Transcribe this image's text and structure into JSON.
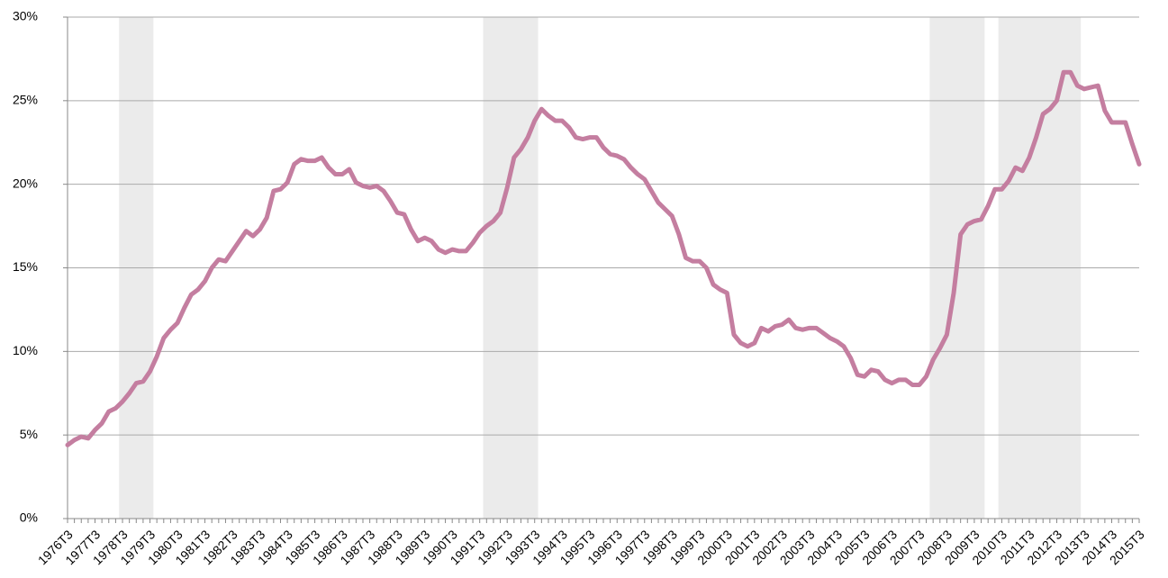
{
  "chart_data": {
    "type": "line",
    "categories": [
      "1976T3",
      null,
      null,
      null,
      "1977T3",
      null,
      null,
      null,
      "1978T3",
      null,
      null,
      null,
      "1979T3",
      null,
      null,
      null,
      "1980T3",
      null,
      null,
      null,
      "1981T3",
      null,
      null,
      null,
      "1982T3",
      null,
      null,
      null,
      "1983T3",
      null,
      null,
      null,
      "1984T3",
      null,
      null,
      null,
      "1985T3",
      null,
      null,
      null,
      "1986T3",
      null,
      null,
      null,
      "1987T3",
      null,
      null,
      null,
      "1988T3",
      null,
      null,
      null,
      "1989T3",
      null,
      null,
      null,
      "1990T3",
      null,
      null,
      null,
      "1991T3",
      null,
      null,
      null,
      "1992T3",
      null,
      null,
      null,
      "1993T3",
      null,
      null,
      null,
      "1994T3",
      null,
      null,
      null,
      "1995T3",
      null,
      null,
      null,
      "1996T3",
      null,
      null,
      null,
      "1997T3",
      null,
      null,
      null,
      "1998T3",
      null,
      null,
      null,
      "1999T3",
      null,
      null,
      null,
      "2000T3",
      null,
      null,
      null,
      "2001T3",
      null,
      null,
      null,
      "2002T3",
      null,
      null,
      null,
      "2003T3",
      null,
      null,
      null,
      "2004T3",
      null,
      null,
      null,
      "2005T3",
      null,
      null,
      null,
      "2006T3",
      null,
      null,
      null,
      "2007T3",
      null,
      null,
      null,
      "2008T3",
      null,
      null,
      null,
      "2009T3",
      null,
      null,
      null,
      "2010T3",
      null,
      null,
      null,
      "2011T3",
      null,
      null,
      null,
      "2012T3",
      null,
      null,
      null,
      "2013T3",
      null,
      null,
      null,
      "2014T3",
      null,
      null,
      null,
      "2015T3"
    ],
    "values": [
      4.4,
      4.7,
      4.9,
      4.8,
      5.3,
      5.7,
      6.4,
      6.6,
      7.0,
      7.5,
      8.1,
      8.2,
      8.8,
      9.7,
      10.8,
      11.3,
      11.7,
      12.6,
      13.4,
      13.7,
      14.2,
      15.0,
      15.5,
      15.4,
      16.0,
      16.6,
      17.2,
      16.9,
      17.3,
      18.0,
      19.6,
      19.7,
      20.1,
      21.2,
      21.5,
      21.4,
      21.4,
      21.6,
      21.0,
      20.6,
      20.6,
      20.9,
      20.1,
      19.9,
      19.8,
      19.9,
      19.6,
      19.0,
      18.3,
      18.2,
      17.3,
      16.6,
      16.8,
      16.6,
      16.1,
      15.9,
      16.1,
      16.0,
      16.0,
      16.5,
      17.1,
      17.5,
      17.8,
      18.3,
      19.8,
      21.6,
      22.1,
      22.8,
      23.8,
      24.5,
      24.1,
      23.8,
      23.8,
      23.4,
      22.8,
      22.7,
      22.8,
      22.8,
      22.2,
      21.8,
      21.7,
      21.5,
      21.0,
      20.6,
      20.3,
      19.6,
      18.9,
      18.5,
      18.1,
      17.0,
      15.6,
      15.4,
      15.4,
      15.0,
      14.0,
      13.7,
      13.5,
      11.0,
      10.5,
      10.3,
      10.5,
      11.4,
      11.2,
      11.5,
      11.6,
      11.9,
      11.4,
      11.3,
      11.4,
      11.4,
      11.1,
      10.8,
      10.6,
      10.3,
      9.6,
      8.6,
      8.5,
      8.9,
      8.8,
      8.3,
      8.1,
      8.3,
      8.3,
      8.0,
      8.0,
      8.5,
      9.5,
      10.2,
      11.0,
      13.5,
      17.0,
      17.6,
      17.8,
      17.9,
      18.7,
      19.7,
      19.7,
      20.2,
      21.0,
      20.8,
      21.6,
      22.8,
      24.2,
      24.5,
      25.0,
      26.7,
      26.7,
      25.9,
      25.7,
      25.8,
      25.9,
      24.4,
      23.7,
      23.7,
      23.7,
      22.4,
      21.2
    ],
    "color": "#c47ea0",
    "ylim": [
      0,
      30
    ],
    "yticks": [
      {
        "value": 0,
        "label": "0%"
      },
      {
        "value": 5,
        "label": "5%"
      },
      {
        "value": 10,
        "label": "10%"
      },
      {
        "value": 15,
        "label": "15%"
      },
      {
        "value": 20,
        "label": "20%"
      },
      {
        "value": 25,
        "label": "25%"
      },
      {
        "value": 30,
        "label": "30%"
      }
    ],
    "grid": true,
    "shaded_ranges": [
      [
        8,
        12
      ],
      [
        61,
        68
      ],
      [
        126,
        133
      ],
      [
        136,
        147
      ]
    ],
    "shade_color": "#ebebeb"
  }
}
